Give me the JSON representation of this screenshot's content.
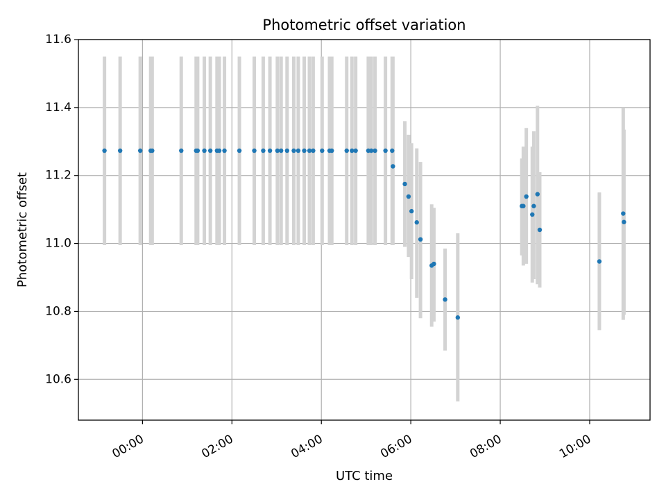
{
  "chart_data": {
    "type": "scatter",
    "title": "Photometric offset variation",
    "xlabel": "UTC time",
    "ylabel": "Photometric offset",
    "x_unit": "UTC time (HH:MM)",
    "xlim": [
      "-01:26",
      "11:21"
    ],
    "ylim": [
      10.48,
      11.6
    ],
    "x_ticks": [
      "00:00",
      "02:00",
      "04:00",
      "06:00",
      "08:00",
      "10:00"
    ],
    "y_ticks": [
      10.6,
      10.8,
      11.0,
      11.2,
      11.4,
      11.6
    ],
    "y_tick_labels": [
      "10.6",
      "10.8",
      "11.0",
      "11.2",
      "11.4",
      "11.6"
    ],
    "grid": true,
    "marker_color": "#1f77b4",
    "errorbar_color": "#d3d3d3",
    "series": [
      {
        "points": [
          {
            "t": "-00:51",
            "y": 11.273,
            "lo": 10.995,
            "hi": 11.55
          },
          {
            "t": "-00:30",
            "y": 11.273,
            "lo": 10.995,
            "hi": 11.55
          },
          {
            "t": "-00:03",
            "y": 11.273,
            "lo": 10.995,
            "hi": 11.55
          },
          {
            "t": "00:11",
            "y": 11.273,
            "lo": 10.995,
            "hi": 11.55
          },
          {
            "t": "00:13",
            "y": 11.273,
            "lo": 10.995,
            "hi": 11.55
          },
          {
            "t": "00:52",
            "y": 11.273,
            "lo": 10.995,
            "hi": 11.55
          },
          {
            "t": "01:12",
            "y": 11.273,
            "lo": 10.995,
            "hi": 11.55
          },
          {
            "t": "01:14",
            "y": 11.273,
            "lo": 10.995,
            "hi": 11.55
          },
          {
            "t": "01:23",
            "y": 11.273,
            "lo": 10.995,
            "hi": 11.55
          },
          {
            "t": "01:31",
            "y": 11.273,
            "lo": 10.995,
            "hi": 11.55
          },
          {
            "t": "01:40",
            "y": 11.273,
            "lo": 10.995,
            "hi": 11.55
          },
          {
            "t": "01:43",
            "y": 11.273,
            "lo": 10.995,
            "hi": 11.55
          },
          {
            "t": "01:50",
            "y": 11.273,
            "lo": 10.995,
            "hi": 11.55
          },
          {
            "t": "02:10",
            "y": 11.273,
            "lo": 10.995,
            "hi": 11.55
          },
          {
            "t": "02:30",
            "y": 11.273,
            "lo": 10.995,
            "hi": 11.55
          },
          {
            "t": "02:42",
            "y": 11.273,
            "lo": 10.995,
            "hi": 11.55
          },
          {
            "t": "02:51",
            "y": 11.273,
            "lo": 10.995,
            "hi": 11.55
          },
          {
            "t": "03:01",
            "y": 11.273,
            "lo": 10.995,
            "hi": 11.55
          },
          {
            "t": "03:06",
            "y": 11.273,
            "lo": 10.995,
            "hi": 11.55
          },
          {
            "t": "03:14",
            "y": 11.273,
            "lo": 10.995,
            "hi": 11.55
          },
          {
            "t": "03:23",
            "y": 11.273,
            "lo": 10.995,
            "hi": 11.55
          },
          {
            "t": "03:29",
            "y": 11.273,
            "lo": 10.995,
            "hi": 11.55
          },
          {
            "t": "03:37",
            "y": 11.273,
            "lo": 10.995,
            "hi": 11.55
          },
          {
            "t": "03:44",
            "y": 11.273,
            "lo": 10.995,
            "hi": 11.55
          },
          {
            "t": "03:49",
            "y": 11.273,
            "lo": 10.995,
            "hi": 11.55
          },
          {
            "t": "04:01",
            "y": 11.273,
            "lo": 10.995,
            "hi": 11.55
          },
          {
            "t": "04:11",
            "y": 11.273,
            "lo": 10.995,
            "hi": 11.55
          },
          {
            "t": "04:14",
            "y": 11.273,
            "lo": 10.995,
            "hi": 11.55
          },
          {
            "t": "04:34",
            "y": 11.273,
            "lo": 10.995,
            "hi": 11.55
          },
          {
            "t": "04:41",
            "y": 11.273,
            "lo": 10.995,
            "hi": 11.55
          },
          {
            "t": "04:46",
            "y": 11.273,
            "lo": 10.995,
            "hi": 11.55
          },
          {
            "t": "05:03",
            "y": 11.273,
            "lo": 10.995,
            "hi": 11.55
          },
          {
            "t": "05:07",
            "y": 11.273,
            "lo": 10.995,
            "hi": 11.55
          },
          {
            "t": "05:12",
            "y": 11.273,
            "lo": 10.995,
            "hi": 11.55
          },
          {
            "t": "05:26",
            "y": 11.273,
            "lo": 10.995,
            "hi": 11.55
          },
          {
            "t": "05:35",
            "y": 11.273,
            "lo": 10.995,
            "hi": 11.55
          },
          {
            "t": "05:36",
            "y": 11.227,
            "lo": 10.995,
            "hi": 11.55
          },
          {
            "t": "05:52",
            "y": 11.175,
            "lo": 10.99,
            "hi": 11.36
          },
          {
            "t": "05:57",
            "y": 11.138,
            "lo": 10.96,
            "hi": 11.32
          },
          {
            "t": "06:01",
            "y": 11.095,
            "lo": 10.895,
            "hi": 11.295
          },
          {
            "t": "06:08",
            "y": 11.062,
            "lo": 10.84,
            "hi": 11.28
          },
          {
            "t": "06:13",
            "y": 11.012,
            "lo": 10.78,
            "hi": 11.24
          },
          {
            "t": "06:28",
            "y": 10.935,
            "lo": 10.755,
            "hi": 11.115
          },
          {
            "t": "06:31",
            "y": 10.94,
            "lo": 10.77,
            "hi": 11.105
          },
          {
            "t": "06:46",
            "y": 10.835,
            "lo": 10.685,
            "hi": 10.985
          },
          {
            "t": "07:03",
            "y": 10.782,
            "lo": 10.535,
            "hi": 11.03
          },
          {
            "t": "08:29",
            "y": 11.11,
            "lo": 10.965,
            "hi": 11.25
          },
          {
            "t": "08:31",
            "y": 11.11,
            "lo": 10.935,
            "hi": 11.285
          },
          {
            "t": "08:35",
            "y": 11.138,
            "lo": 10.94,
            "hi": 11.34
          },
          {
            "t": "08:43",
            "y": 11.085,
            "lo": 10.885,
            "hi": 11.285
          },
          {
            "t": "08:45",
            "y": 11.11,
            "lo": 10.895,
            "hi": 11.33
          },
          {
            "t": "08:50",
            "y": 11.145,
            "lo": 10.88,
            "hi": 11.405
          },
          {
            "t": "08:53",
            "y": 11.04,
            "lo": 10.87,
            "hi": 11.21
          },
          {
            "t": "10:13",
            "y": 10.947,
            "lo": 10.745,
            "hi": 11.15
          },
          {
            "t": "10:45",
            "y": 11.088,
            "lo": 10.775,
            "hi": 11.4
          },
          {
            "t": "10:46",
            "y": 11.063,
            "lo": 10.79,
            "hi": 11.335
          }
        ]
      }
    ]
  }
}
